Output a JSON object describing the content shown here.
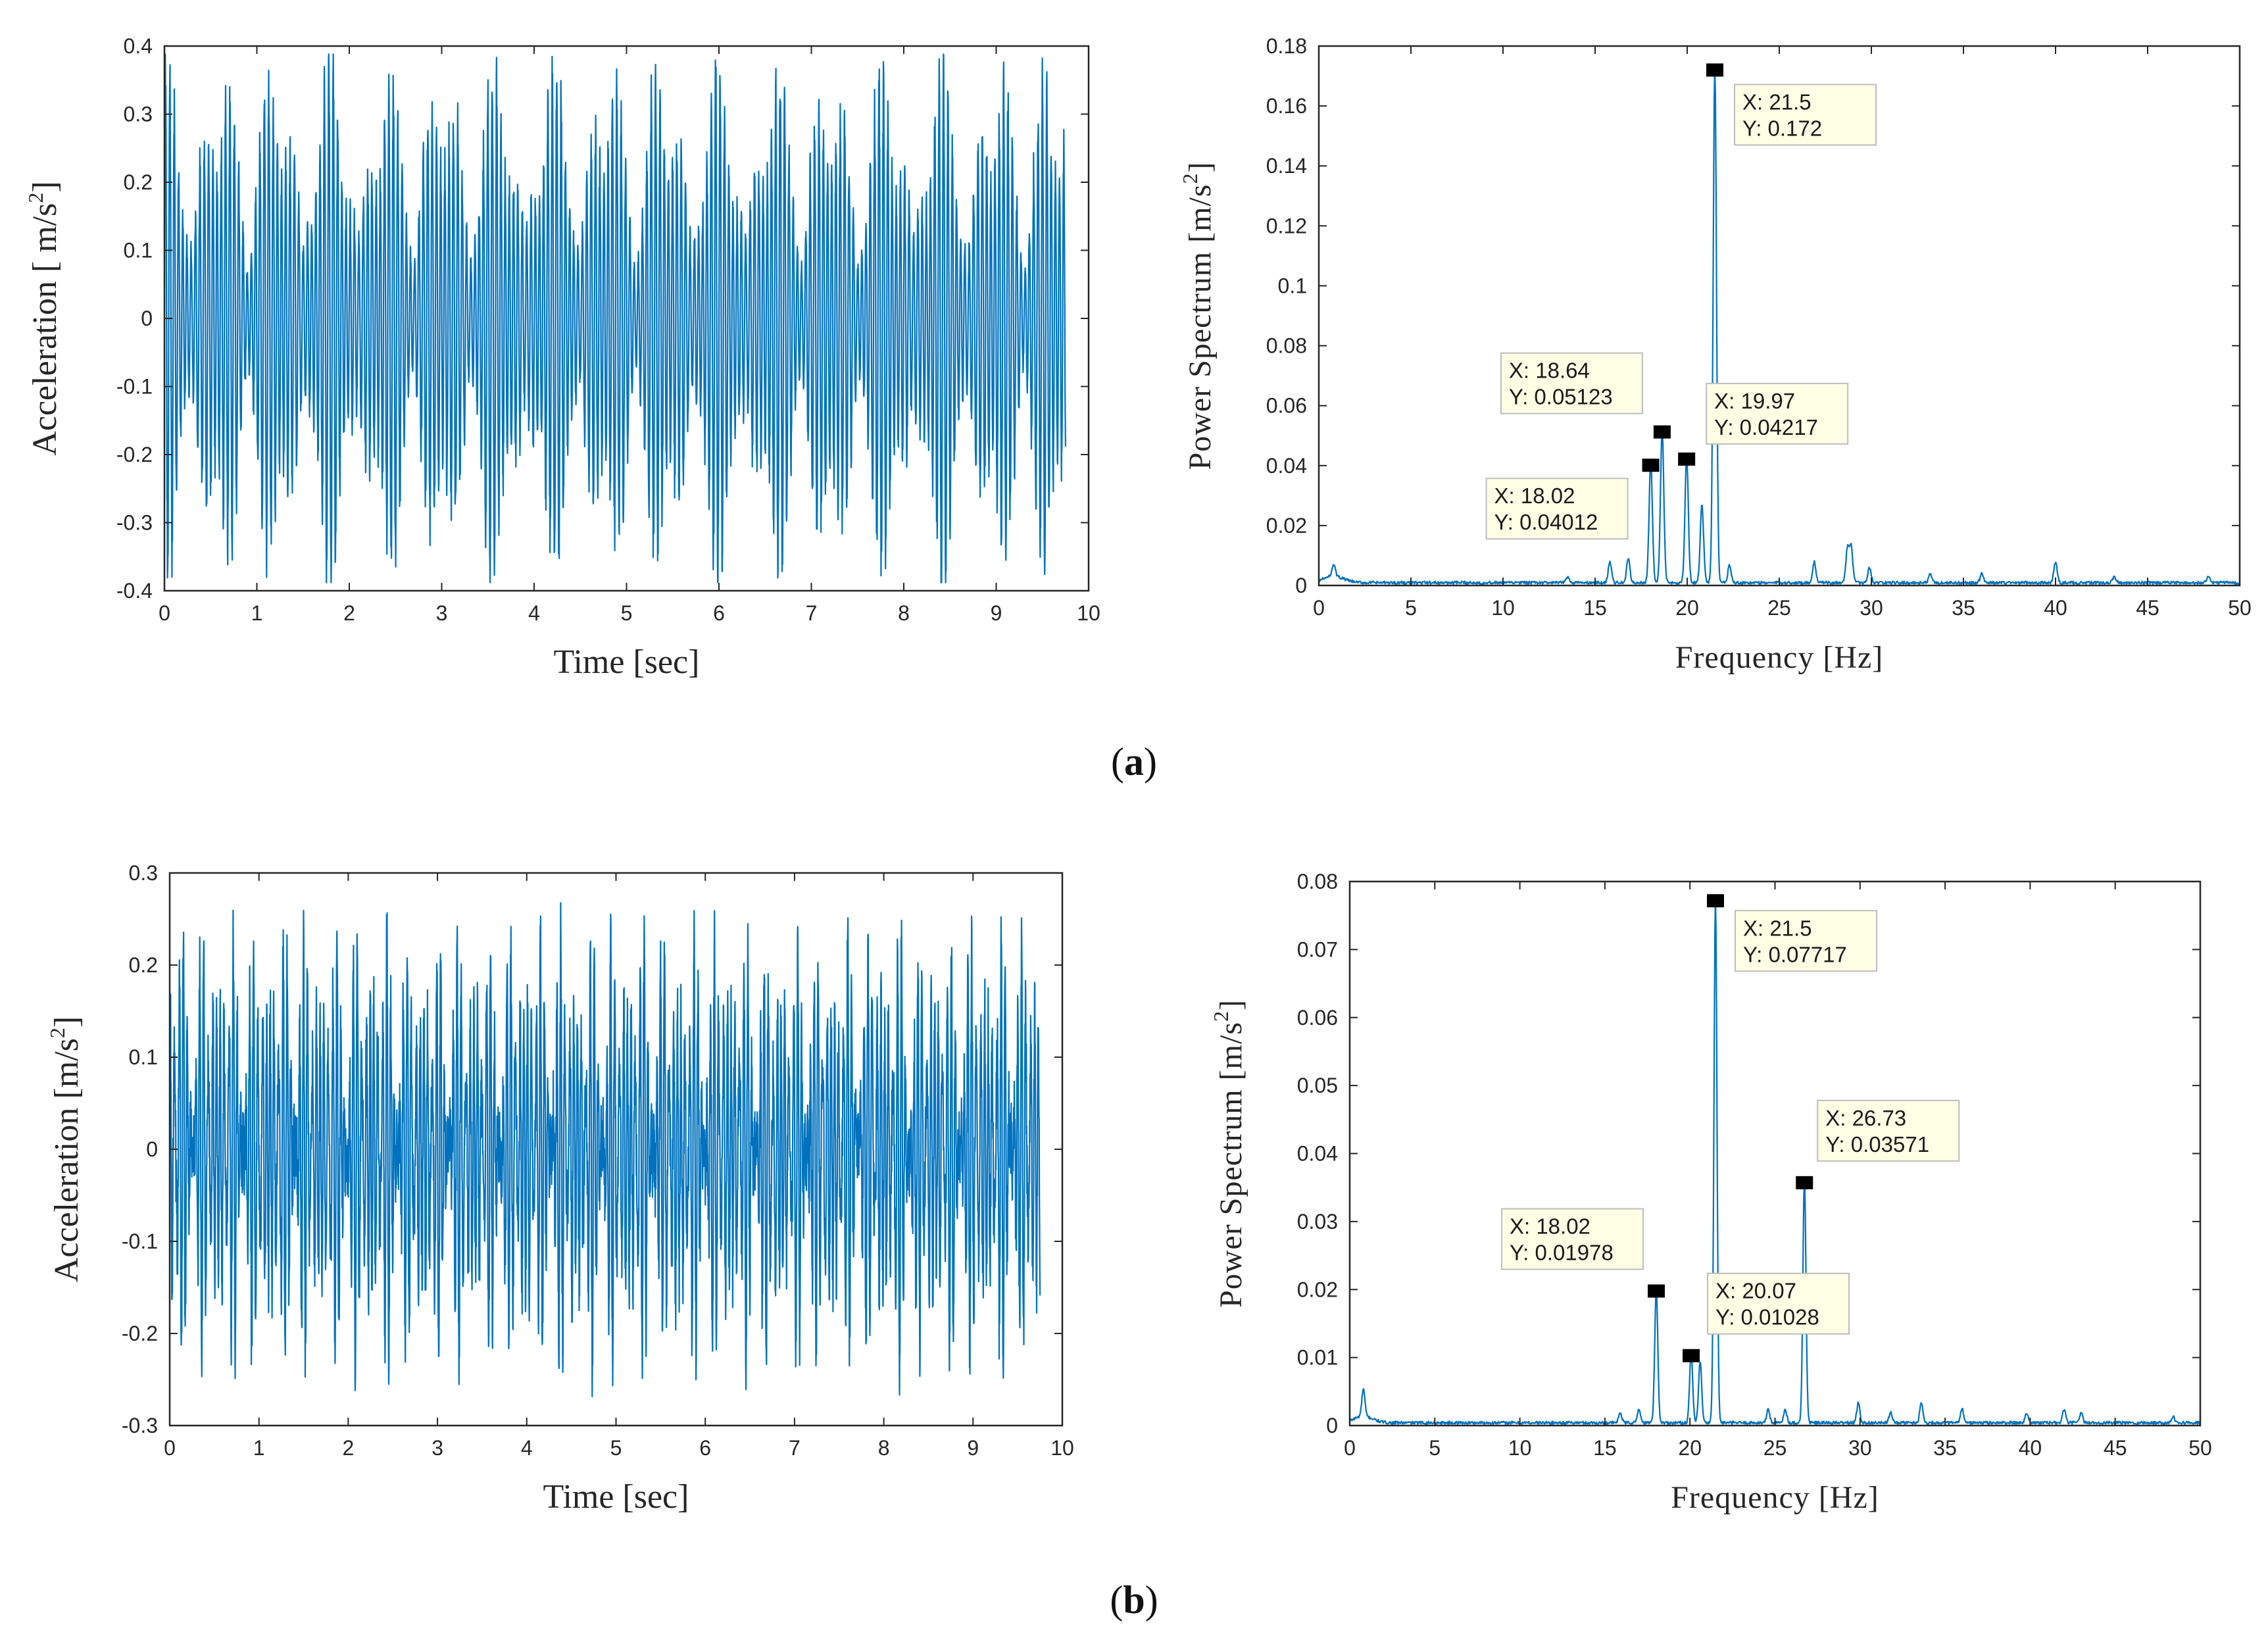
{
  "figure": {
    "panel_labels": [
      {
        "open": "(",
        "letter": "a",
        "close": ")"
      },
      {
        "open": "(",
        "letter": "b",
        "close": ")"
      }
    ],
    "line_color": "#0072bd"
  },
  "chart_data": [
    {
      "id": "a-time",
      "type": "line",
      "xlabel": "Time [sec]",
      "ylabel_main": "Acceleration [ m/s",
      "ylabel_sup": "2",
      "ylabel_end": "]",
      "xlim": [
        0,
        10
      ],
      "ylim": [
        -0.4,
        0.4
      ],
      "xticks": [
        0,
        1,
        2,
        3,
        4,
        5,
        6,
        7,
        8,
        9,
        10
      ],
      "yticks": [
        -0.4,
        -0.3,
        -0.2,
        -0.1,
        0,
        0.1,
        0.2,
        0.3,
        0.4
      ],
      "ytick_labels": [
        "-0.4",
        "-0.3",
        "-0.2",
        "-0.1",
        "0",
        "0.1",
        "0.2",
        "0.3",
        "0.4"
      ],
      "xtick_labels": [
        "0",
        "1",
        "2",
        "3",
        "4",
        "5",
        "6",
        "7",
        "8",
        "9",
        "10"
      ],
      "signal": {
        "duration": 9.75,
        "peak_amplitude": 0.38,
        "beat_period": 0.6,
        "carrier_hz": 21.5,
        "modulation_depth": 0.7
      },
      "series": [
        {
          "name": "acceleration",
          "kind": "beating-vibration"
        }
      ]
    },
    {
      "id": "a-spectrum",
      "type": "line",
      "xlabel": "Frequency [Hz]",
      "ylabel_main": "Power Spectrum [m/s",
      "ylabel_sup": "2",
      "ylabel_end": "]",
      "xlim": [
        0,
        50
      ],
      "ylim": [
        0,
        0.18
      ],
      "xticks": [
        0,
        5,
        10,
        15,
        20,
        25,
        30,
        35,
        40,
        45,
        50
      ],
      "xtick_labels": [
        "0",
        "5",
        "10",
        "15",
        "20",
        "25",
        "30",
        "35",
        "40",
        "45",
        "50"
      ],
      "yticks": [
        0,
        0.02,
        0.04,
        0.06,
        0.08,
        0.1,
        0.12,
        0.14,
        0.16,
        0.18
      ],
      "ytick_labels": [
        "0",
        "0.02",
        "0.04",
        "0.06",
        "0.08",
        "0.1",
        "0.12",
        "0.14",
        "0.16",
        "0.18"
      ],
      "peaks": [
        {
          "x": 0.8,
          "y": 0.004
        },
        {
          "x": 13.5,
          "y": 0.002
        },
        {
          "x": 15.8,
          "y": 0.007
        },
        {
          "x": 16.8,
          "y": 0.008
        },
        {
          "x": 18.02,
          "y": 0.04012
        },
        {
          "x": 18.64,
          "y": 0.05123
        },
        {
          "x": 19.97,
          "y": 0.04217
        },
        {
          "x": 20.8,
          "y": 0.026
        },
        {
          "x": 21.5,
          "y": 0.172
        },
        {
          "x": 22.3,
          "y": 0.006
        },
        {
          "x": 26.9,
          "y": 0.007
        },
        {
          "x": 28.7,
          "y": 0.011
        },
        {
          "x": 28.9,
          "y": 0.012
        },
        {
          "x": 29.9,
          "y": 0.005
        },
        {
          "x": 33.2,
          "y": 0.003
        },
        {
          "x": 36.0,
          "y": 0.003
        },
        {
          "x": 40.0,
          "y": 0.007
        },
        {
          "x": 43.2,
          "y": 0.002
        },
        {
          "x": 48.3,
          "y": 0.002
        }
      ],
      "annotations": [
        {
          "x": 18.02,
          "y": 0.04012,
          "label_x": "X: 18.02",
          "label_y": "Y: 0.04012",
          "place": "lower-left"
        },
        {
          "x": 18.64,
          "y": 0.05123,
          "label_x": "X: 18.64",
          "label_y": "Y: 0.05123",
          "place": "upper-left"
        },
        {
          "x": 19.97,
          "y": 0.04217,
          "label_x": "X: 19.97",
          "label_y": "Y: 0.04217",
          "place": "right"
        },
        {
          "x": 21.5,
          "y": 0.172,
          "label_x": "X: 21.5",
          "label_y": "Y: 0.172",
          "place": "right"
        }
      ]
    },
    {
      "id": "b-time",
      "type": "line",
      "xlabel": "Time [sec]",
      "ylabel_main": "Acceleration [m/s",
      "ylabel_sup": "2",
      "ylabel_end": "]",
      "xlim": [
        0,
        10
      ],
      "ylim": [
        -0.3,
        0.3
      ],
      "xticks": [
        0,
        1,
        2,
        3,
        4,
        5,
        6,
        7,
        8,
        9,
        10
      ],
      "xtick_labels": [
        "0",
        "1",
        "2",
        "3",
        "4",
        "5",
        "6",
        "7",
        "8",
        "9",
        "10"
      ],
      "yticks": [
        -0.3,
        -0.2,
        -0.1,
        0,
        0.1,
        0.2,
        0.3
      ],
      "ytick_labels": [
        "-0.3",
        "-0.2",
        "-0.1",
        "0",
        "0.1",
        "0.2",
        "0.3"
      ],
      "signal": {
        "duration": 9.75,
        "peak_amplitude": 0.25,
        "beat_period": 0.0,
        "carrier_hz": 21.5,
        "modulation_depth": 0.0
      },
      "series": [
        {
          "name": "acceleration",
          "kind": "broadband-vibration"
        }
      ]
    },
    {
      "id": "b-spectrum",
      "type": "line",
      "xlabel": "Frequency [Hz]",
      "ylabel_main": "Power Spectrum [m/s",
      "ylabel_sup": "2",
      "ylabel_end": "]",
      "xlim": [
        0,
        50
      ],
      "ylim": [
        0,
        0.08
      ],
      "xticks": [
        0,
        5,
        10,
        15,
        20,
        25,
        30,
        35,
        40,
        45,
        50
      ],
      "xtick_labels": [
        "0",
        "5",
        "10",
        "15",
        "20",
        "25",
        "30",
        "35",
        "40",
        "45",
        "50"
      ],
      "yticks": [
        0,
        0.01,
        0.02,
        0.03,
        0.04,
        0.05,
        0.06,
        0.07,
        0.08
      ],
      "ytick_labels": [
        "0",
        "0.01",
        "0.02",
        "0.03",
        "0.04",
        "0.05",
        "0.06",
        "0.07",
        "0.08"
      ],
      "peaks": [
        {
          "x": 0.8,
          "y": 0.004
        },
        {
          "x": 15.9,
          "y": 0.0015
        },
        {
          "x": 17.0,
          "y": 0.002
        },
        {
          "x": 18.02,
          "y": 0.01978
        },
        {
          "x": 20.07,
          "y": 0.01028
        },
        {
          "x": 20.6,
          "y": 0.009
        },
        {
          "x": 21.5,
          "y": 0.07717
        },
        {
          "x": 24.6,
          "y": 0.002
        },
        {
          "x": 25.6,
          "y": 0.002
        },
        {
          "x": 26.73,
          "y": 0.03571
        },
        {
          "x": 29.9,
          "y": 0.003
        },
        {
          "x": 31.8,
          "y": 0.0015
        },
        {
          "x": 33.6,
          "y": 0.003
        },
        {
          "x": 36.0,
          "y": 0.002
        },
        {
          "x": 39.8,
          "y": 0.0015
        },
        {
          "x": 42.0,
          "y": 0.002
        },
        {
          "x": 43.0,
          "y": 0.0015
        },
        {
          "x": 48.4,
          "y": 0.001
        }
      ],
      "annotations": [
        {
          "x": 18.02,
          "y": 0.01978,
          "label_x": "X: 18.02",
          "label_y": "Y: 0.01978",
          "place": "upper-left"
        },
        {
          "x": 20.07,
          "y": 0.01028,
          "label_x": "X: 20.07",
          "label_y": "Y: 0.01028",
          "place": "right-above"
        },
        {
          "x": 21.5,
          "y": 0.07717,
          "label_x": "X: 21.5",
          "label_y": "Y: 0.07717",
          "place": "right"
        },
        {
          "x": 26.73,
          "y": 0.03571,
          "label_x": "X: 26.73",
          "label_y": "Y: 0.03571",
          "place": "upper-right"
        }
      ]
    }
  ]
}
